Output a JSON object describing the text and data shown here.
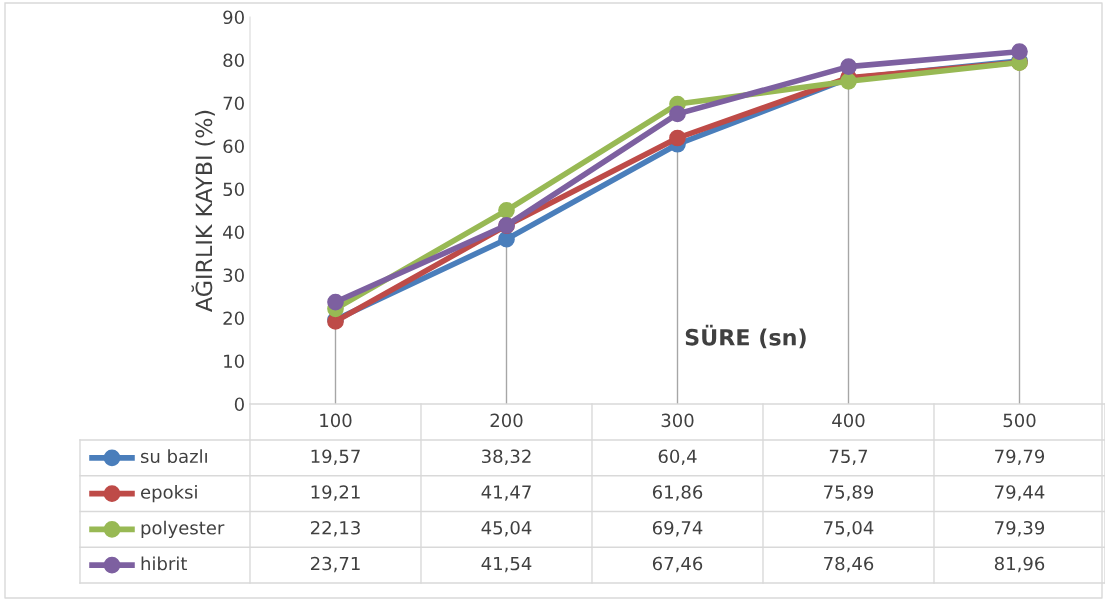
{
  "chart_data": {
    "type": "line",
    "xlabel": "SÜRE (sn)",
    "ylabel": "AĞIRLIK KAYBI (%)",
    "categories": [
      "100",
      "200",
      "300",
      "400",
      "500"
    ],
    "ylim": [
      0,
      90
    ],
    "yticks": [
      0,
      10,
      20,
      30,
      40,
      50,
      60,
      70,
      80,
      90
    ],
    "grid": false,
    "legend": "left",
    "ref_lines": [
      {
        "axis": "x",
        "value": "100",
        "color": "#a6a6a6"
      },
      {
        "axis": "x",
        "value": "200",
        "color": "#a6a6a6"
      },
      {
        "axis": "x",
        "value": "300",
        "color": "#a6a6a6"
      },
      {
        "axis": "x",
        "value": "400",
        "color": "#a6a6a6"
      },
      {
        "axis": "x",
        "value": "500",
        "color": "#a6a6a6"
      }
    ],
    "marker": "circle",
    "line_style": "solid",
    "series": [
      {
        "name": "su bazlı",
        "color": "#4a7ebb",
        "values": [
          19.57,
          38.32,
          60.4,
          75.7,
          79.79
        ],
        "value_labels": [
          "19,57",
          "38,32",
          "60,4",
          "75,7",
          "79,79"
        ]
      },
      {
        "name": "epoksi",
        "color": "#be4b48",
        "values": [
          19.21,
          41.47,
          61.86,
          75.89,
          79.44
        ],
        "value_labels": [
          "19,21",
          "41,47",
          "61,86",
          "75,89",
          "79,44"
        ]
      },
      {
        "name": "polyester",
        "color": "#98b954",
        "values": [
          22.13,
          45.04,
          69.74,
          75.04,
          79.39
        ],
        "value_labels": [
          "22,13",
          "45,04",
          "69,74",
          "75,04",
          "79,39"
        ]
      },
      {
        "name": "hibrit",
        "color": "#7d60a0",
        "values": [
          23.71,
          41.54,
          67.46,
          78.46,
          81.96
        ],
        "value_labels": [
          "23,71",
          "41,54",
          "67,46",
          "78,46",
          "81,96"
        ]
      }
    ]
  }
}
